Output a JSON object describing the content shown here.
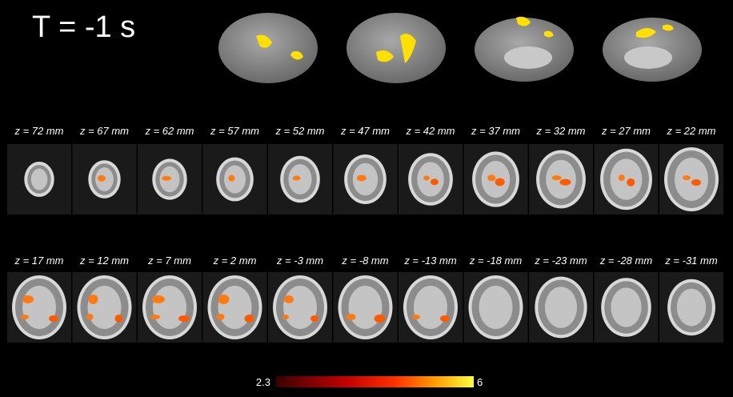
{
  "header": {
    "title": "T = -1 s"
  },
  "rows": [
    {
      "labels": [
        "z = 72 mm",
        "z = 67 mm",
        "z = 62 mm",
        "z = 57 mm",
        "z = 52 mm",
        "z = 47 mm",
        "z = 42 mm",
        "z = 37 mm",
        "z = 32 mm",
        "z = 27 mm",
        "z = 22 mm"
      ]
    },
    {
      "labels": [
        "z = 17 mm",
        "z = 12 mm",
        "z = 7 mm",
        "z = 2 mm",
        "z = -3 mm",
        "z = -8 mm",
        "z = -13 mm",
        "z = -18 mm",
        "z = -23 mm",
        "z = -28 mm",
        "z = -31 mm"
      ]
    }
  ],
  "colorbar": {
    "min": "2.3",
    "max": "6"
  }
}
